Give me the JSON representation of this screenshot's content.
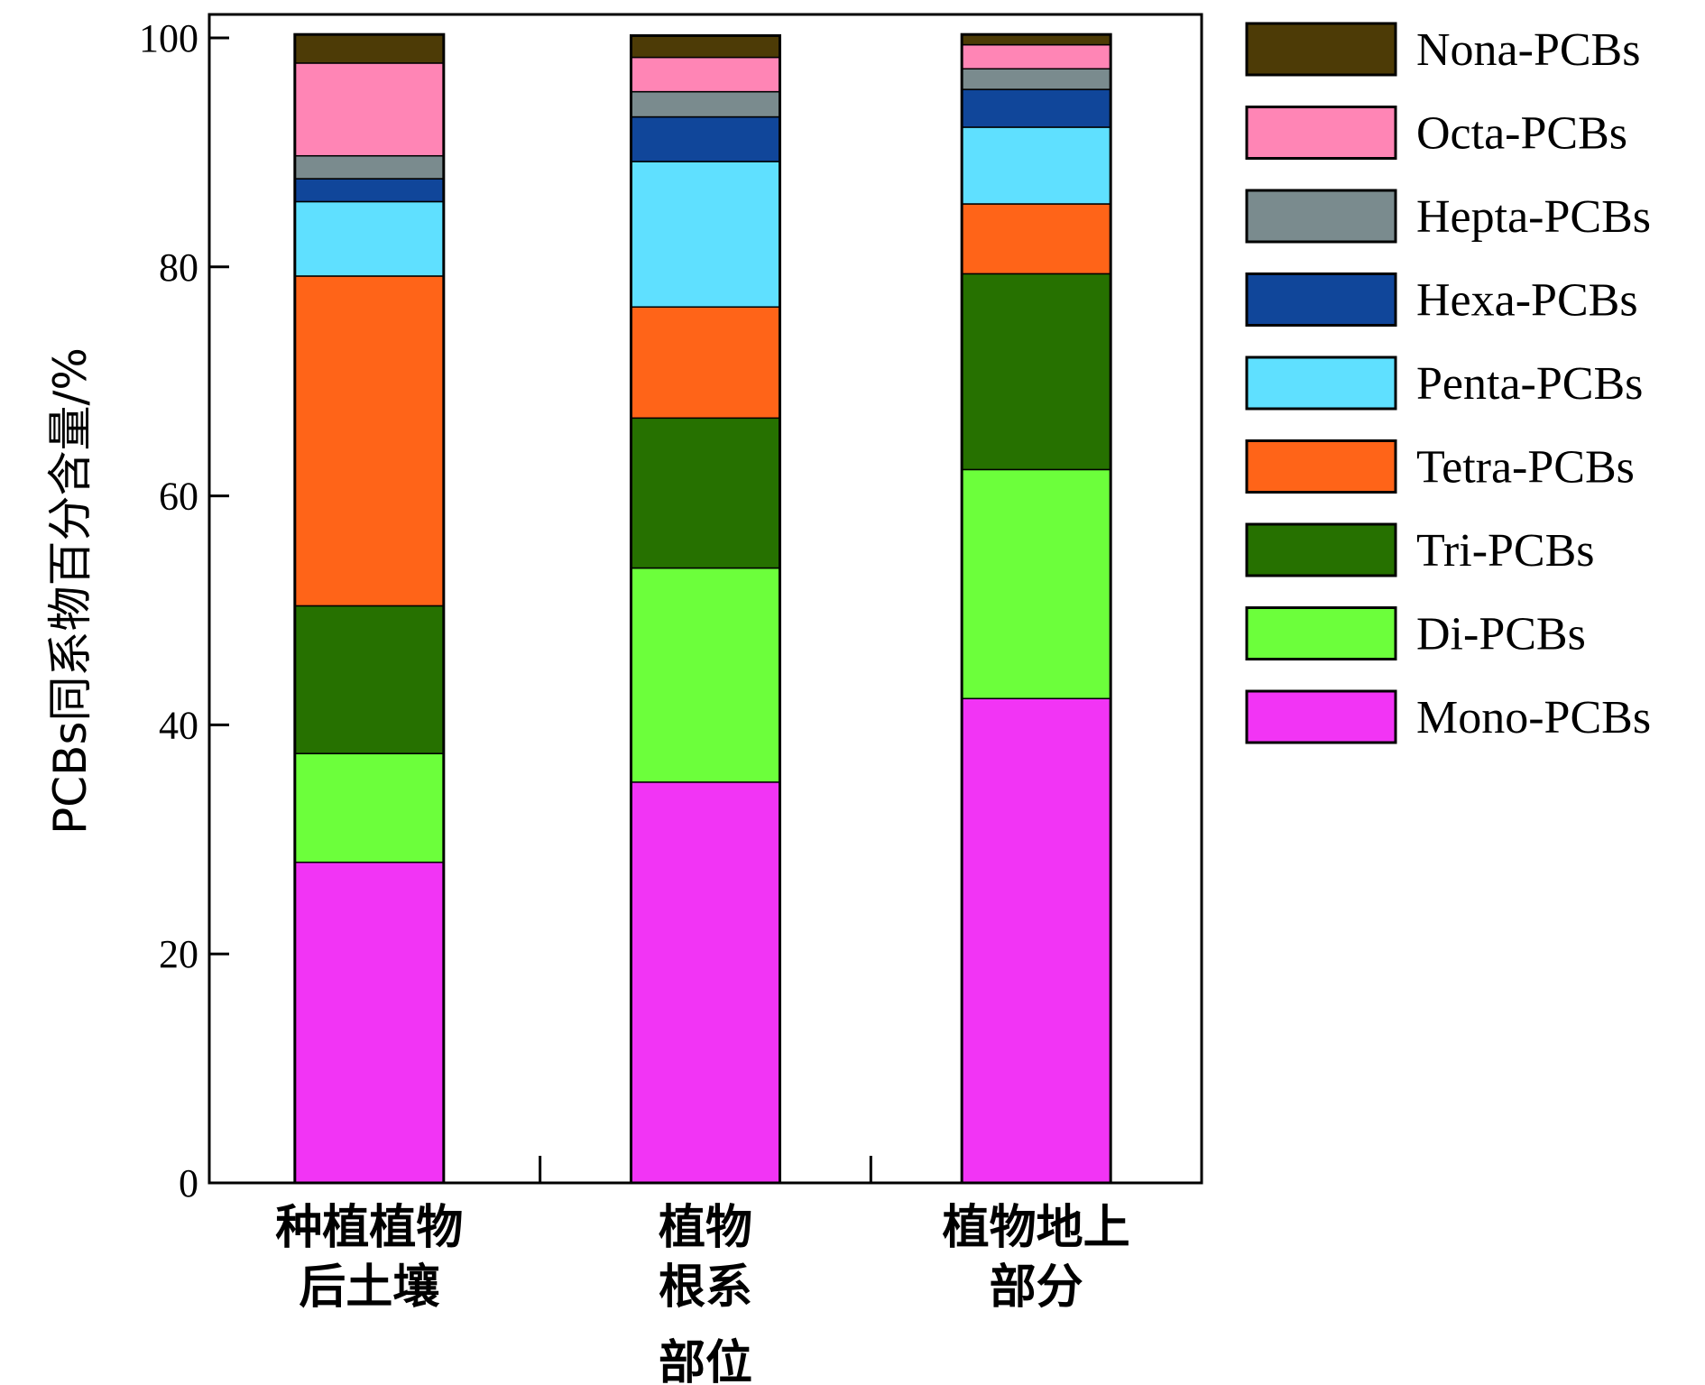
{
  "chart_data": {
    "type": "bar",
    "stacked": true,
    "title": "",
    "xlabel": "部位",
    "ylabel": "PCBs同系物百分含量/%",
    "ylim": [
      0,
      100
    ],
    "yticks": [
      "0",
      "20",
      "40",
      "60",
      "80",
      "100"
    ],
    "categories": [
      [
        "种植植物",
        "后土壤"
      ],
      [
        "植物",
        "根系"
      ],
      [
        "植物地上",
        "部分"
      ]
    ],
    "legend_position": "right",
    "series": [
      {
        "name": "Mono-PCBs",
        "color": "#f234f5",
        "values": [
          28.0,
          35.0,
          42.3
        ]
      },
      {
        "name": "Di-PCBs",
        "color": "#6cff3b",
        "values": [
          9.5,
          18.7,
          20.0
        ]
      },
      {
        "name": "Tri-PCBs",
        "color": "#267100",
        "values": [
          12.9,
          13.1,
          17.1
        ]
      },
      {
        "name": "Tetra-PCBs",
        "color": "#ff6418",
        "values": [
          28.8,
          9.7,
          6.1
        ]
      },
      {
        "name": "Penta-PCBs",
        "color": "#5fe0ff",
        "values": [
          6.5,
          12.7,
          6.7
        ]
      },
      {
        "name": "Hexa-PCBs",
        "color": "#10469a",
        "values": [
          2.0,
          3.9,
          3.3
        ]
      },
      {
        "name": "Hepta-PCBs",
        "color": "#7a8b8e",
        "values": [
          2.0,
          2.2,
          1.8
        ]
      },
      {
        "name": "Octa-PCBs",
        "color": "#ff85b5",
        "values": [
          8.1,
          3.0,
          2.1
        ]
      },
      {
        "name": "Nona-PCBs",
        "color": "#4d3b06",
        "values": [
          2.5,
          1.9,
          0.9
        ]
      }
    ]
  }
}
